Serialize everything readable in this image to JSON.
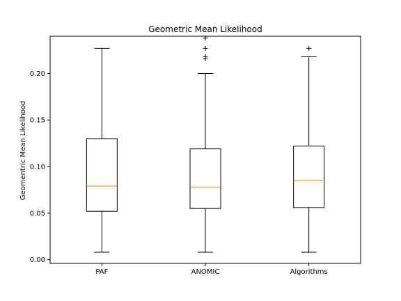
{
  "chart_data": {
    "type": "box",
    "title": "Geometric Mean Likelihood",
    "xlabel": "",
    "ylabel": "Geomentric Mean Likelihood",
    "ylim": [
      -0.004,
      0.24
    ],
    "yticks": [
      0.0,
      0.05,
      0.1,
      0.15,
      0.2
    ],
    "ytick_labels": [
      "0.00",
      "0.05",
      "0.10",
      "0.15",
      "0.20"
    ],
    "grid": false,
    "categories": [
      "PAF",
      "ANOMIC",
      "Algorithms"
    ],
    "boxes": [
      {
        "whisker_low": 0.008,
        "q1": 0.052,
        "median": 0.079,
        "q3": 0.13,
        "whisker_high": 0.227,
        "outliers": []
      },
      {
        "whisker_low": 0.008,
        "q1": 0.055,
        "median": 0.078,
        "q3": 0.119,
        "whisker_high": 0.2,
        "outliers": [
          0.216,
          0.218,
          0.227,
          0.238
        ]
      },
      {
        "whisker_low": 0.008,
        "q1": 0.056,
        "median": 0.085,
        "q3": 0.122,
        "whisker_high": 0.218,
        "outliers": [
          0.227
        ]
      }
    ],
    "colors": {
      "box": "#000000",
      "median": "#ff7f0e",
      "outlier": "#000000"
    }
  }
}
